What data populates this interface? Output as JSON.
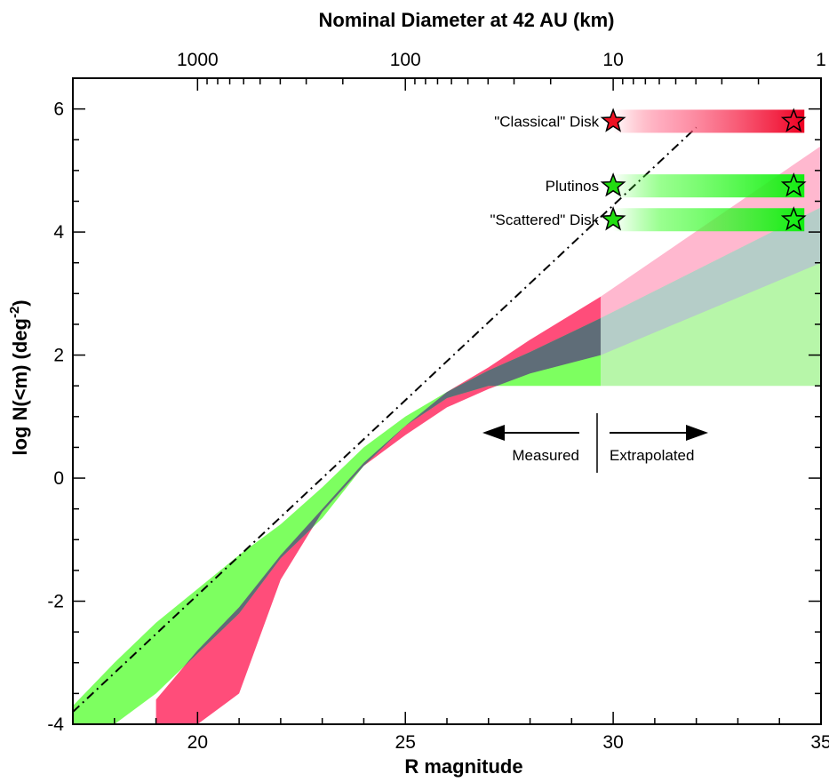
{
  "chart_data": {
    "type": "area",
    "title": "Nominal Diameter at 42 AU (km)",
    "xlabel": "R magnitude",
    "ylabel": "log N(<m)  (deg",
    "ylabel_sup": "-2",
    "ylabel_close": ")",
    "xlim": [
      17,
      35
    ],
    "ylim": [
      -4,
      6.5
    ],
    "x_ticks": [
      20,
      25,
      30,
      35
    ],
    "y_ticks": [
      -4,
      -2,
      0,
      2,
      4,
      6
    ],
    "top_axis": {
      "ticks": [
        {
          "label": "1000",
          "x": 20
        },
        {
          "label": "100",
          "x": 25
        },
        {
          "label": "10",
          "x": 30
        },
        {
          "label": "1",
          "x": 35
        }
      ]
    },
    "series": [
      {
        "name": "\"Classical\" Disk",
        "color": "#ff4d7a",
        "measured_band": {
          "x": [
            19.0,
            20.0,
            21.0,
            22.0,
            23.0,
            24.0,
            25.0,
            26.0,
            27.0,
            28.0,
            29.7
          ],
          "upper": [
            -3.6,
            -2.8,
            -2.1,
            -1.25,
            -0.5,
            0.25,
            0.85,
            1.4,
            1.8,
            2.25,
            2.95
          ],
          "lower": [
            -4.0,
            -4.0,
            -3.5,
            -1.65,
            -0.55,
            0.2,
            0.7,
            1.15,
            1.45,
            1.7,
            2.0
          ]
        },
        "extrapolated_band": {
          "x": [
            29.7,
            35.0
          ],
          "upper": [
            2.95,
            5.4
          ],
          "lower": [
            2.0,
            3.5
          ]
        }
      },
      {
        "name": "Plutinos",
        "color": "#66ff44",
        "measured_band": {
          "x": [
            17.0,
            18.0,
            19.0,
            20.0,
            21.0,
            22.0,
            23.0,
            24.0,
            25.0,
            26.0,
            27.0,
            28.0,
            29.7
          ],
          "upper": [
            -3.7,
            -3.0,
            -2.35,
            -1.8,
            -1.25,
            -0.75,
            -0.15,
            0.5,
            1.0,
            1.4,
            1.75,
            2.05,
            2.6
          ],
          "lower": [
            -4.0,
            -4.0,
            -3.5,
            -2.85,
            -2.2,
            -1.3,
            -0.65,
            0.2,
            0.85,
            1.3,
            1.5,
            1.5,
            1.5
          ]
        },
        "extrapolated_band": {
          "x": [
            29.7,
            35.0
          ],
          "upper": [
            2.6,
            4.4
          ],
          "lower": [
            1.5,
            1.5
          ]
        }
      },
      {
        "name": "\"Scattered\" Disk",
        "color": "#22dd22"
      },
      {
        "name": "extrapolation",
        "style": "dash-dot",
        "x": [
          17.0,
          32.0
        ],
        "y": [
          -3.8,
          5.7
        ]
      }
    ],
    "markers": [
      {
        "label": "\"Classical\" Disk",
        "y": 5.8,
        "x_start": 30.0,
        "x_end": 34.3,
        "color": "#ee1122"
      },
      {
        "label": "Plutinos",
        "y": 4.75,
        "x_start": 30.0,
        "x_end": 34.3,
        "color": "#22dd11"
      },
      {
        "label": "\"Scattered\" Disk",
        "y": 4.2,
        "x_start": 30.0,
        "x_end": 34.3,
        "color": "#22dd11"
      }
    ],
    "divider_x": 29.7,
    "annotations": {
      "measured": "Measured",
      "extrapolated": "Extrapolated"
    }
  }
}
